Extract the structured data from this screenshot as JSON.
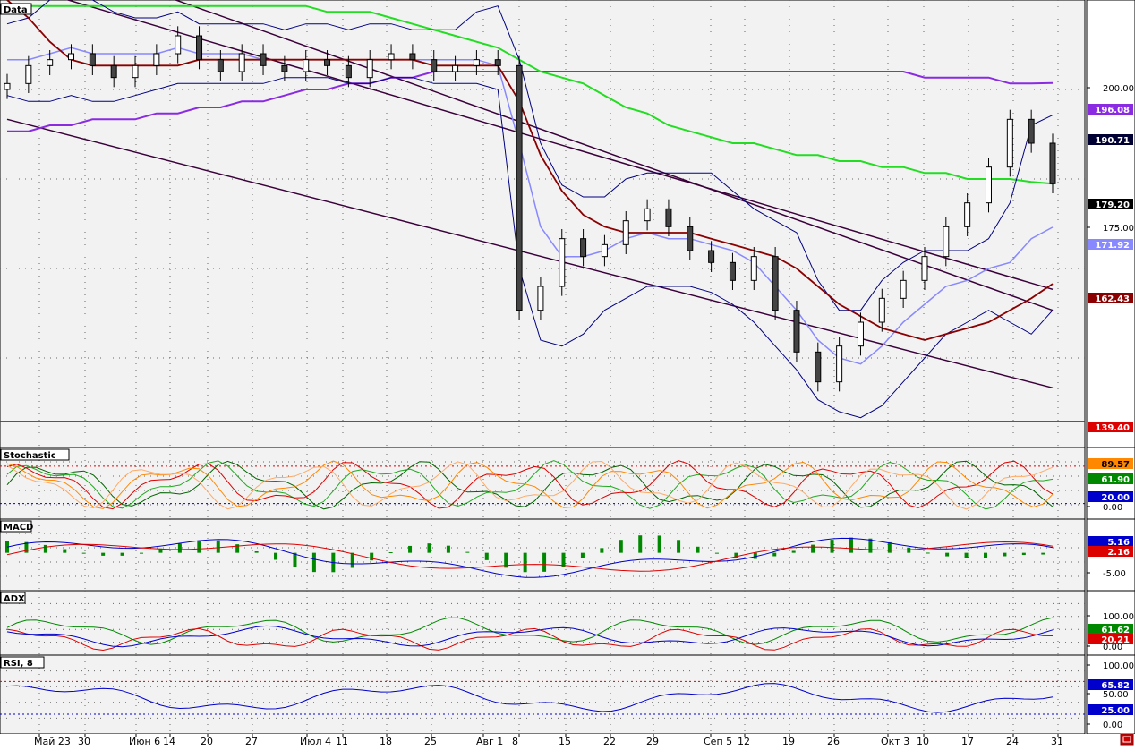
{
  "colors": {
    "up_candle": "#ffffff",
    "down_candle": "#444444",
    "sma_dark_red": "#8b0000",
    "sma_green": "#22dd22",
    "sma_purple": "#8a2be2",
    "bollinger_outer": "#000080",
    "bollinger_mid": "#8888ff",
    "channel": "#3a003a",
    "support": "#dd0000",
    "stoch_lines": [
      "#006400",
      "#22aa22",
      "#dd0000",
      "#ff8800",
      "#ffaa66"
    ],
    "macd_line": "#0000cc",
    "macd_signal": "#dd0000",
    "macd_hist": "#008800",
    "adx_plus": "#008800",
    "adx_minus": "#dd0000",
    "adx_line": "#0000cc",
    "rsi_line": "#0000cc"
  },
  "x_axis": {
    "labels": [
      "Май 23",
      "30",
      "Июн 6",
      "14",
      "20",
      "27",
      "Июл 4",
      "11",
      "18",
      "25",
      "Авг 1",
      "8",
      "15",
      "22",
      "29",
      "Сеп 5",
      "12",
      "19",
      "26",
      "Окт 3",
      "10",
      "17",
      "24",
      "31"
    ]
  },
  "panels": {
    "price": {
      "title": "Data",
      "axis_ticks": [
        "200.00",
        "175.00"
      ],
      "value_tags": [
        {
          "text": "196.08",
          "bg": "#8a2be2",
          "fg": "#ffffff",
          "value": 196.08
        },
        {
          "text": "190.71",
          "bg": "#000033",
          "fg": "#ffffff",
          "value": 190.71
        },
        {
          "text": "179.20",
          "bg": "#000000",
          "fg": "#ffffff",
          "value": 179.2
        },
        {
          "text": "171.92",
          "bg": "#8888ff",
          "fg": "#ffffff",
          "value": 171.92
        },
        {
          "text": "162.43",
          "bg": "#8b0000",
          "fg": "#ffffff",
          "value": 162.43
        },
        {
          "text": "139.40",
          "bg": "#dd0000",
          "fg": "#ffffff",
          "value": 139.4
        }
      ]
    },
    "stochastic": {
      "title": "Stochastic",
      "axis_ticks": [
        "0.00"
      ],
      "value_tags": [
        {
          "text": "89.57",
          "bg": "#ff8800",
          "fg": "#000000"
        },
        {
          "text": "61.90",
          "bg": "#008800",
          "fg": "#ffffff"
        },
        {
          "text": "20.00",
          "bg": "#0000cc",
          "fg": "#ffffff"
        }
      ]
    },
    "macd": {
      "title": "MACD",
      "axis_ticks": [
        "-5.00"
      ],
      "value_tags": [
        {
          "text": "5.16",
          "bg": "#0000cc",
          "fg": "#ffffff"
        },
        {
          "text": "2.16",
          "bg": "#dd0000",
          "fg": "#ffffff"
        }
      ]
    },
    "adx": {
      "title": "ADX",
      "axis_ticks": [
        "100.00",
        "0.00"
      ],
      "value_tags": [
        {
          "text": "61.62",
          "bg": "#008800",
          "fg": "#ffffff"
        },
        {
          "text": "20.21",
          "bg": "#dd0000",
          "fg": "#ffffff"
        }
      ]
    },
    "rsi": {
      "title": "RSI, 8",
      "axis_ticks": [
        "100.00",
        "50.00",
        "0.00"
      ],
      "value_tags": [
        {
          "text": "65.82",
          "bg": "#0000cc",
          "fg": "#ffffff"
        },
        {
          "text": "25.00",
          "bg": "#0000cc",
          "fg": "#ffffff"
        }
      ]
    }
  },
  "chart_data": {
    "type": "candlestick",
    "x": [
      "Май 23",
      "30",
      "Июн 6",
      "14",
      "20",
      "27",
      "Июл 4",
      "11",
      "18",
      "25",
      "Авг 1",
      "8",
      "15",
      "22",
      "29",
      "Сеп 5",
      "12",
      "19",
      "26",
      "Окт 3",
      "10",
      "17",
      "24",
      "31"
    ],
    "ylim": [
      135,
      210
    ],
    "support_level": 139.4,
    "close_series": [
      196,
      199,
      200,
      201,
      199,
      197,
      199,
      201,
      204,
      200,
      198,
      201,
      199,
      198,
      200,
      199,
      197,
      200,
      201,
      200,
      198,
      199,
      200,
      199,
      158,
      162,
      170,
      167,
      169,
      173,
      175,
      172,
      168,
      166,
      163,
      167,
      158,
      151,
      146,
      152,
      156,
      160,
      163,
      167,
      172,
      176,
      182,
      190,
      186,
      179.2
    ],
    "bollinger_upper": [
      206,
      207,
      210,
      211,
      210,
      208,
      207,
      207,
      208,
      206,
      206,
      206,
      206,
      205,
      206,
      206,
      205,
      206,
      206,
      205,
      205,
      205,
      208,
      209,
      200,
      186,
      179,
      177,
      177,
      180,
      181,
      181,
      181,
      181,
      178,
      175,
      173,
      171,
      163,
      158,
      158,
      163,
      166,
      168,
      168,
      168,
      170,
      176,
      189,
      190.71
    ],
    "bollinger_lower": [
      194,
      193,
      193,
      194,
      193,
      193,
      194,
      195,
      196,
      196,
      196,
      196,
      196,
      197,
      197,
      197,
      196,
      196,
      197,
      197,
      196,
      196,
      196,
      195,
      165,
      153,
      152,
      154,
      158,
      160,
      162,
      162,
      162,
      161,
      159,
      156,
      152,
      148,
      143,
      141,
      140,
      142,
      146,
      150,
      154,
      156,
      158,
      156,
      154,
      158
    ],
    "bollinger_mid": [
      200,
      200,
      201,
      202,
      201,
      201,
      201,
      201,
      202,
      201,
      201,
      201,
      200,
      200,
      200,
      200,
      200,
      200,
      200,
      200,
      200,
      200,
      200,
      199,
      186,
      172,
      167,
      167,
      168,
      170,
      171,
      170,
      170,
      169,
      168,
      166,
      162,
      158,
      153,
      150,
      149,
      152,
      156,
      159,
      162,
      163,
      165,
      166,
      170,
      171.92
    ],
    "sma_dark_red": [
      210,
      207,
      203,
      200,
      199,
      199,
      199,
      199,
      199,
      200,
      200,
      200,
      200,
      200,
      200,
      200,
      200,
      200,
      200,
      200,
      199,
      199,
      199,
      199,
      193,
      184,
      178,
      174,
      172,
      171,
      171,
      171,
      171,
      170,
      169,
      168,
      167,
      165,
      162,
      159,
      157,
      155,
      154,
      153,
      154,
      155,
      156,
      158,
      160,
      162.43
    ],
    "sma_green": [
      209,
      209,
      209,
      209,
      209,
      209,
      209,
      209,
      209,
      209,
      209,
      209,
      209,
      209,
      209,
      208,
      208,
      208,
      207,
      206,
      205,
      204,
      203,
      202,
      200,
      198,
      197,
      196,
      194,
      192,
      191,
      189,
      188,
      187,
      186,
      186,
      185,
      184,
      184,
      183,
      183,
      182,
      182,
      181,
      181,
      180,
      180,
      180,
      179.5,
      179.2
    ],
    "sma_purple": [
      188,
      188,
      189,
      189,
      190,
      190,
      190,
      191,
      191,
      192,
      192,
      193,
      193,
      194,
      195,
      195,
      196,
      196,
      197,
      197,
      198,
      198,
      198,
      198,
      198,
      198,
      198,
      198,
      198,
      198,
      198,
      198,
      198,
      198,
      198,
      198,
      198,
      198,
      198,
      198,
      198,
      198,
      198,
      197,
      197,
      197,
      197,
      196,
      196,
      196.08
    ],
    "channel_upper": {
      "from": [
        "Май 23",
        213
      ],
      "to": [
        "31",
        161.5
      ]
    },
    "channel_mid": {
      "from": [
        "Май 23",
        220
      ],
      "to": [
        "31",
        158
      ]
    },
    "channel_lower": {
      "from": [
        "Май 23",
        190
      ],
      "to": [
        "31",
        145
      ]
    },
    "indicators": {
      "stochastic": {
        "overbought": 80,
        "oversold": 20,
        "last": [
          89.57,
          61.9
        ]
      },
      "macd": {
        "last_macd": 5.16,
        "last_signal": 2.16
      },
      "adx": {
        "last_plus_di": 61.62,
        "last_minus_di": 20.21
      },
      "rsi": {
        "period": 8,
        "last": 65.82,
        "level_low": 25,
        "level_high": 75
      }
    }
  }
}
